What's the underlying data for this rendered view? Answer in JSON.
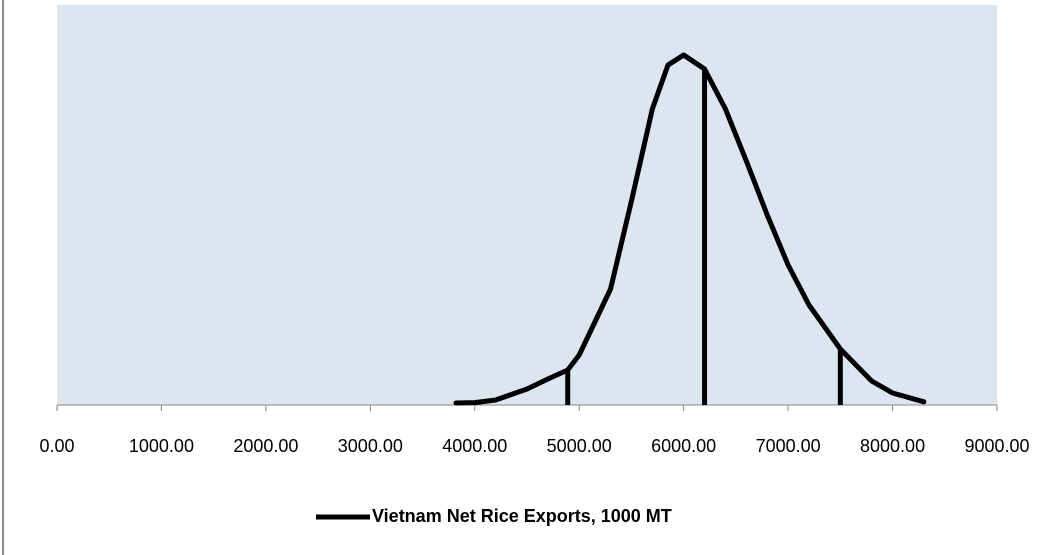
{
  "chart_data": {
    "type": "line",
    "x": [
      3820,
      4000,
      4200,
      4500,
      4700,
      4890,
      5000,
      5300,
      5500,
      5700,
      5850,
      6000,
      6200,
      6400,
      6600,
      6800,
      7000,
      7200,
      7500,
      7800,
      8000,
      8300
    ],
    "series": [
      {
        "name": "Vietnam Net Rice Exports, 1000 MT",
        "color": "#000000",
        "values": [
          0.005,
          0.006,
          0.0125,
          0.04,
          0.065,
          0.0875,
          0.125,
          0.29,
          0.51,
          0.74,
          0.85,
          0.875,
          0.84,
          0.74,
          0.61,
          0.475,
          0.35,
          0.25,
          0.14,
          0.06,
          0.03,
          0.008
        ]
      }
    ],
    "reference_lines": [
      {
        "x": 4890,
        "value": 0.0875
      },
      {
        "x": 6200,
        "value": 0.84
      },
      {
        "x": 7500,
        "value": 0.14
      }
    ],
    "xlim": [
      0,
      9000
    ],
    "ylim": [
      0,
      1
    ],
    "xticks": [
      {
        "value": 0,
        "label": "0.00"
      },
      {
        "value": 1000,
        "label": "1000.00"
      },
      {
        "value": 2000,
        "label": "2000.00"
      },
      {
        "value": 3000,
        "label": "3000.00"
      },
      {
        "value": 4000,
        "label": "4000.00"
      },
      {
        "value": 5000,
        "label": "5000.00"
      },
      {
        "value": 6000,
        "label": "6000.00"
      },
      {
        "value": 7000,
        "label": "7000.00"
      },
      {
        "value": 8000,
        "label": "8000.00"
      },
      {
        "value": 9000,
        "label": "9000.00"
      }
    ],
    "plot_background": "#dce6f1",
    "legend": "bottom"
  }
}
